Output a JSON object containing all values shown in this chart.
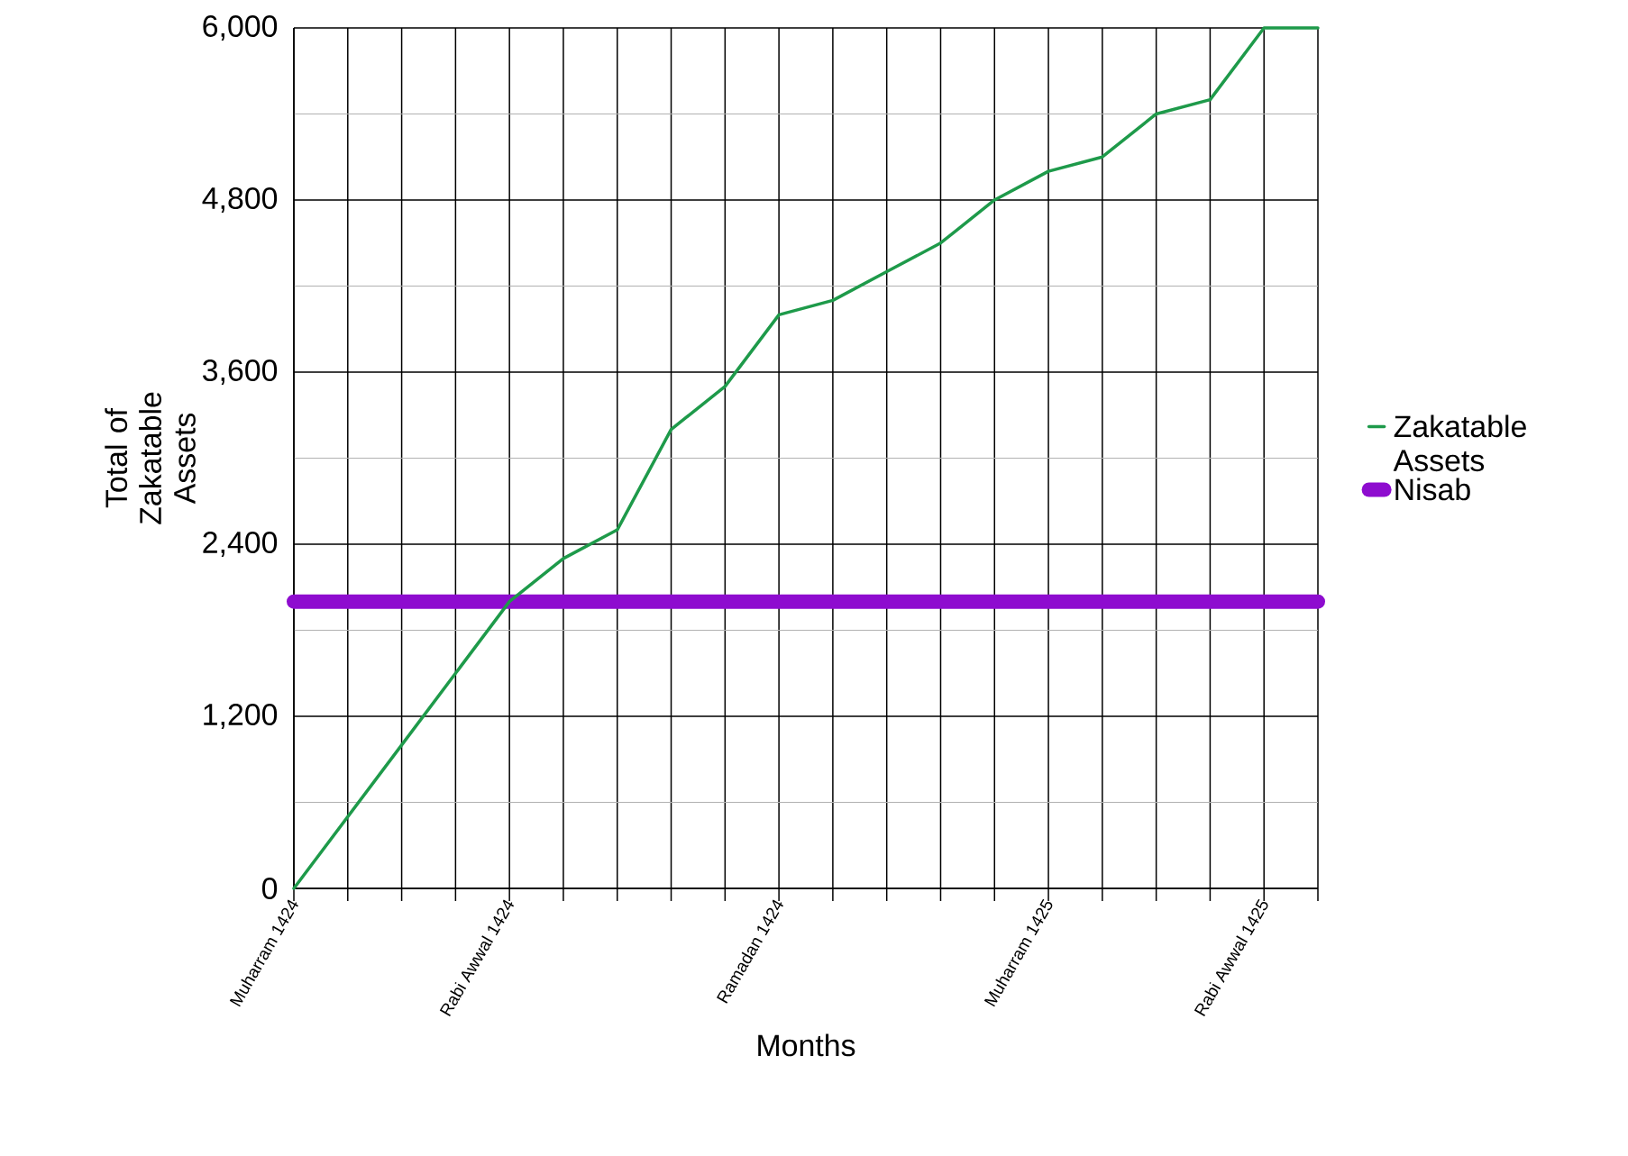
{
  "chart_data": {
    "type": "line",
    "xlabel": "Months",
    "ylabel": "Total of Zakatable Assets",
    "categories": [
      "Muharram 1424",
      null,
      null,
      null,
      "Rabi Awwal 1424",
      null,
      null,
      null,
      null,
      "Ramadan 1424",
      null,
      null,
      null,
      null,
      "Muharram 1425",
      null,
      null,
      null,
      "Rabi Awwal 1425",
      null
    ],
    "series": [
      {
        "name": "Zakatable Assets",
        "color": "#1e9a4a",
        "values": [
          0,
          500,
          1000,
          1500,
          2000,
          2300,
          2500,
          3200,
          3500,
          4000,
          4100,
          4300,
          4500,
          4800,
          5000,
          5100,
          5400,
          5500,
          6000,
          6000
        ]
      },
      {
        "name": "Nisab",
        "color": "#8e0ccf",
        "values": [
          2000,
          2000,
          2000,
          2000,
          2000,
          2000,
          2000,
          2000,
          2000,
          2000,
          2000,
          2000,
          2000,
          2000,
          2000,
          2000,
          2000,
          2000,
          2000,
          2000
        ]
      }
    ],
    "ylim": [
      0,
      6000
    ],
    "yticks": [
      {
        "value": 0,
        "label": "0"
      },
      {
        "value": 1200,
        "label": "1,200"
      },
      {
        "value": 2400,
        "label": "2,400"
      },
      {
        "value": 3600,
        "label": "3,600"
      },
      {
        "value": 4800,
        "label": "4,800"
      },
      {
        "value": 6000,
        "label": "6,000"
      }
    ],
    "grid": true,
    "legend": "right",
    "marker": "none",
    "line_style": "solid"
  }
}
